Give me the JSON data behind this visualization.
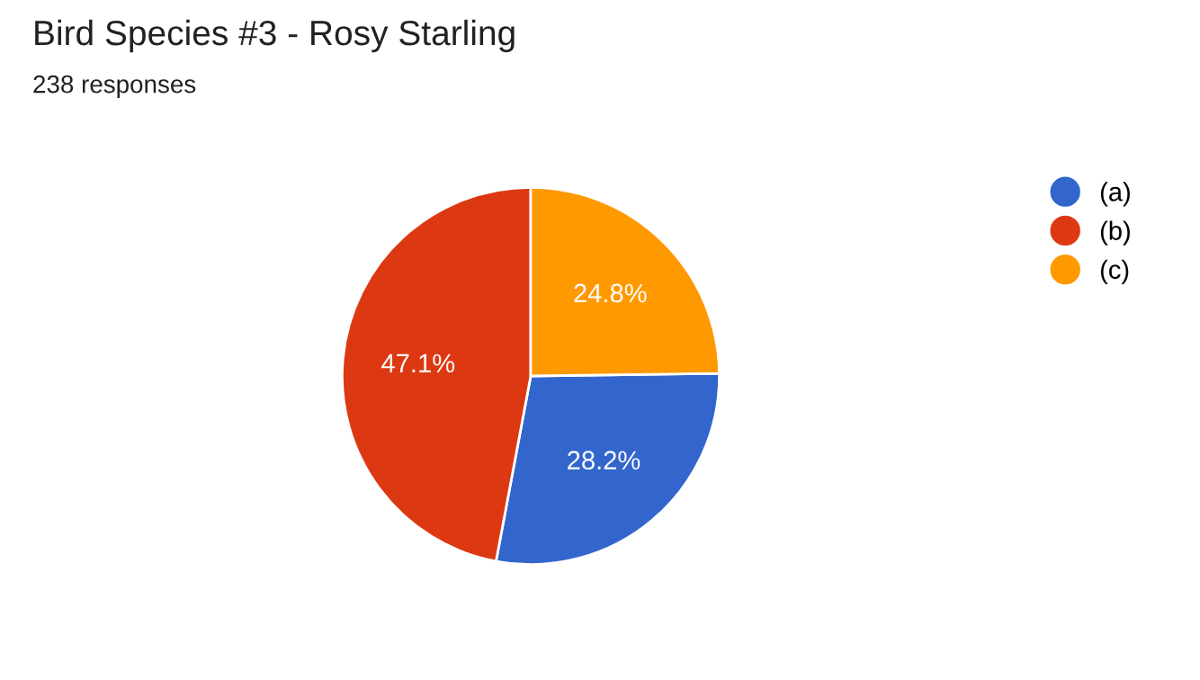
{
  "chart_data": {
    "type": "pie",
    "title": "Bird Species #3 - Rosy Starling",
    "subtitle": "238 responses",
    "categories": [
      "(a)",
      "(b)",
      "(c)"
    ],
    "values": [
      28.2,
      47.1,
      24.8
    ],
    "colors": [
      "#3366cc",
      "#dc3912",
      "#ff9900"
    ],
    "value_labels": [
      "28.2%",
      "47.1%",
      "24.8%"
    ],
    "legend": "top right"
  }
}
